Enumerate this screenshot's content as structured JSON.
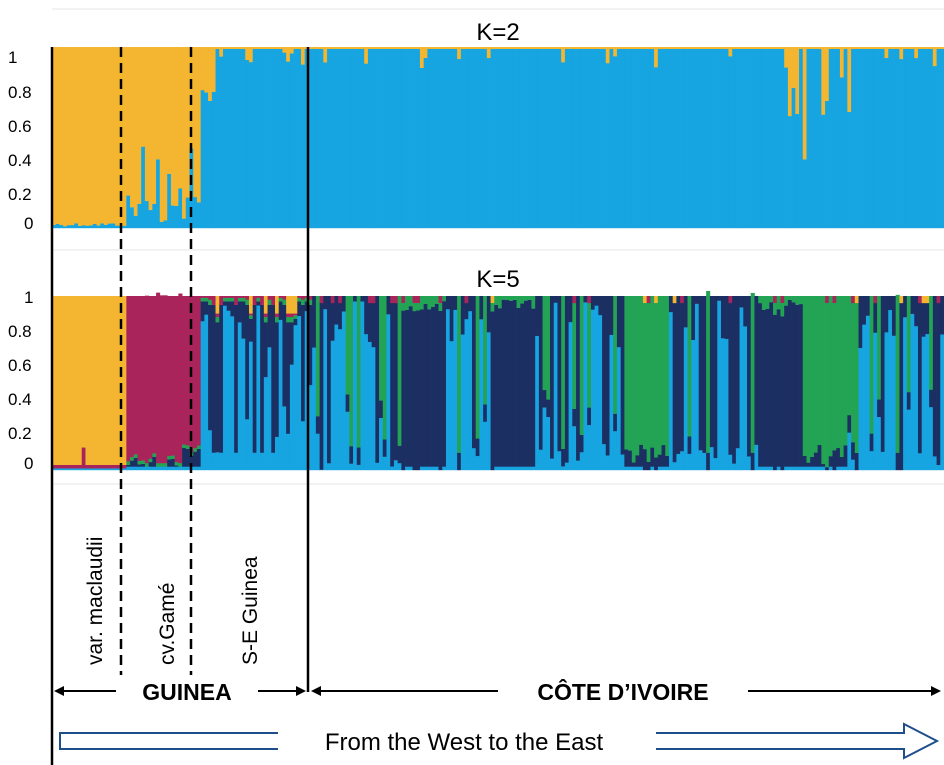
{
  "chart_data": [
    {
      "type": "bar",
      "stacked": true,
      "title": "K=2",
      "ylim": [
        0,
        1
      ],
      "yticks": [
        "0",
        "0.2",
        "0.4",
        "0.6",
        "0.8",
        "1"
      ],
      "n_individuals": 240,
      "colors": {
        "orange": "#f4b630",
        "blue": "#16a5e0"
      },
      "segments": [
        {
          "groups": "var. maclaudii",
          "from": 1,
          "to": 20,
          "orange": 0.98
        },
        {
          "groups": "cv.Gamé",
          "from": 21,
          "to": 40,
          "orange": "0.55–0.98"
        },
        {
          "groups": "S-E Guinea",
          "from": 41,
          "to": 70,
          "orange": "0.00–0.30"
        },
        {
          "groups": "CÔTE D’IVOIRE",
          "from": 71,
          "to": 240,
          "orange": "0.00–0.10, locally up to 0.65"
        }
      ]
    },
    {
      "type": "bar",
      "stacked": true,
      "title": "K=5",
      "ylim": [
        0,
        1
      ],
      "yticks": [
        "0",
        "0.2",
        "0.4",
        "0.6",
        "0.8",
        "1"
      ],
      "n_individuals": 240,
      "colors": {
        "orange": "#f4b630",
        "crimson": "#a8245a",
        "navy": "#1c2f63",
        "blue": "#16a5e0",
        "green": "#23a455"
      },
      "segments": [
        {
          "groups": "var. maclaudii",
          "dominant": "orange"
        },
        {
          "groups": "cv.Gamé",
          "dominant": "crimson"
        },
        {
          "groups": "S-E Guinea",
          "dominant": "navy / blue"
        },
        {
          "groups": "CÔTE D’IVOIRE",
          "dominant": "navy / blue / green"
        }
      ]
    }
  ],
  "groups": [
    "var. maclaudii",
    "cv.Gamé",
    "S-E Guinea"
  ],
  "regions": {
    "guinea": "GUINEA",
    "cote": "CÔTE D’IVOIRE"
  },
  "direction": "From the West to the East"
}
